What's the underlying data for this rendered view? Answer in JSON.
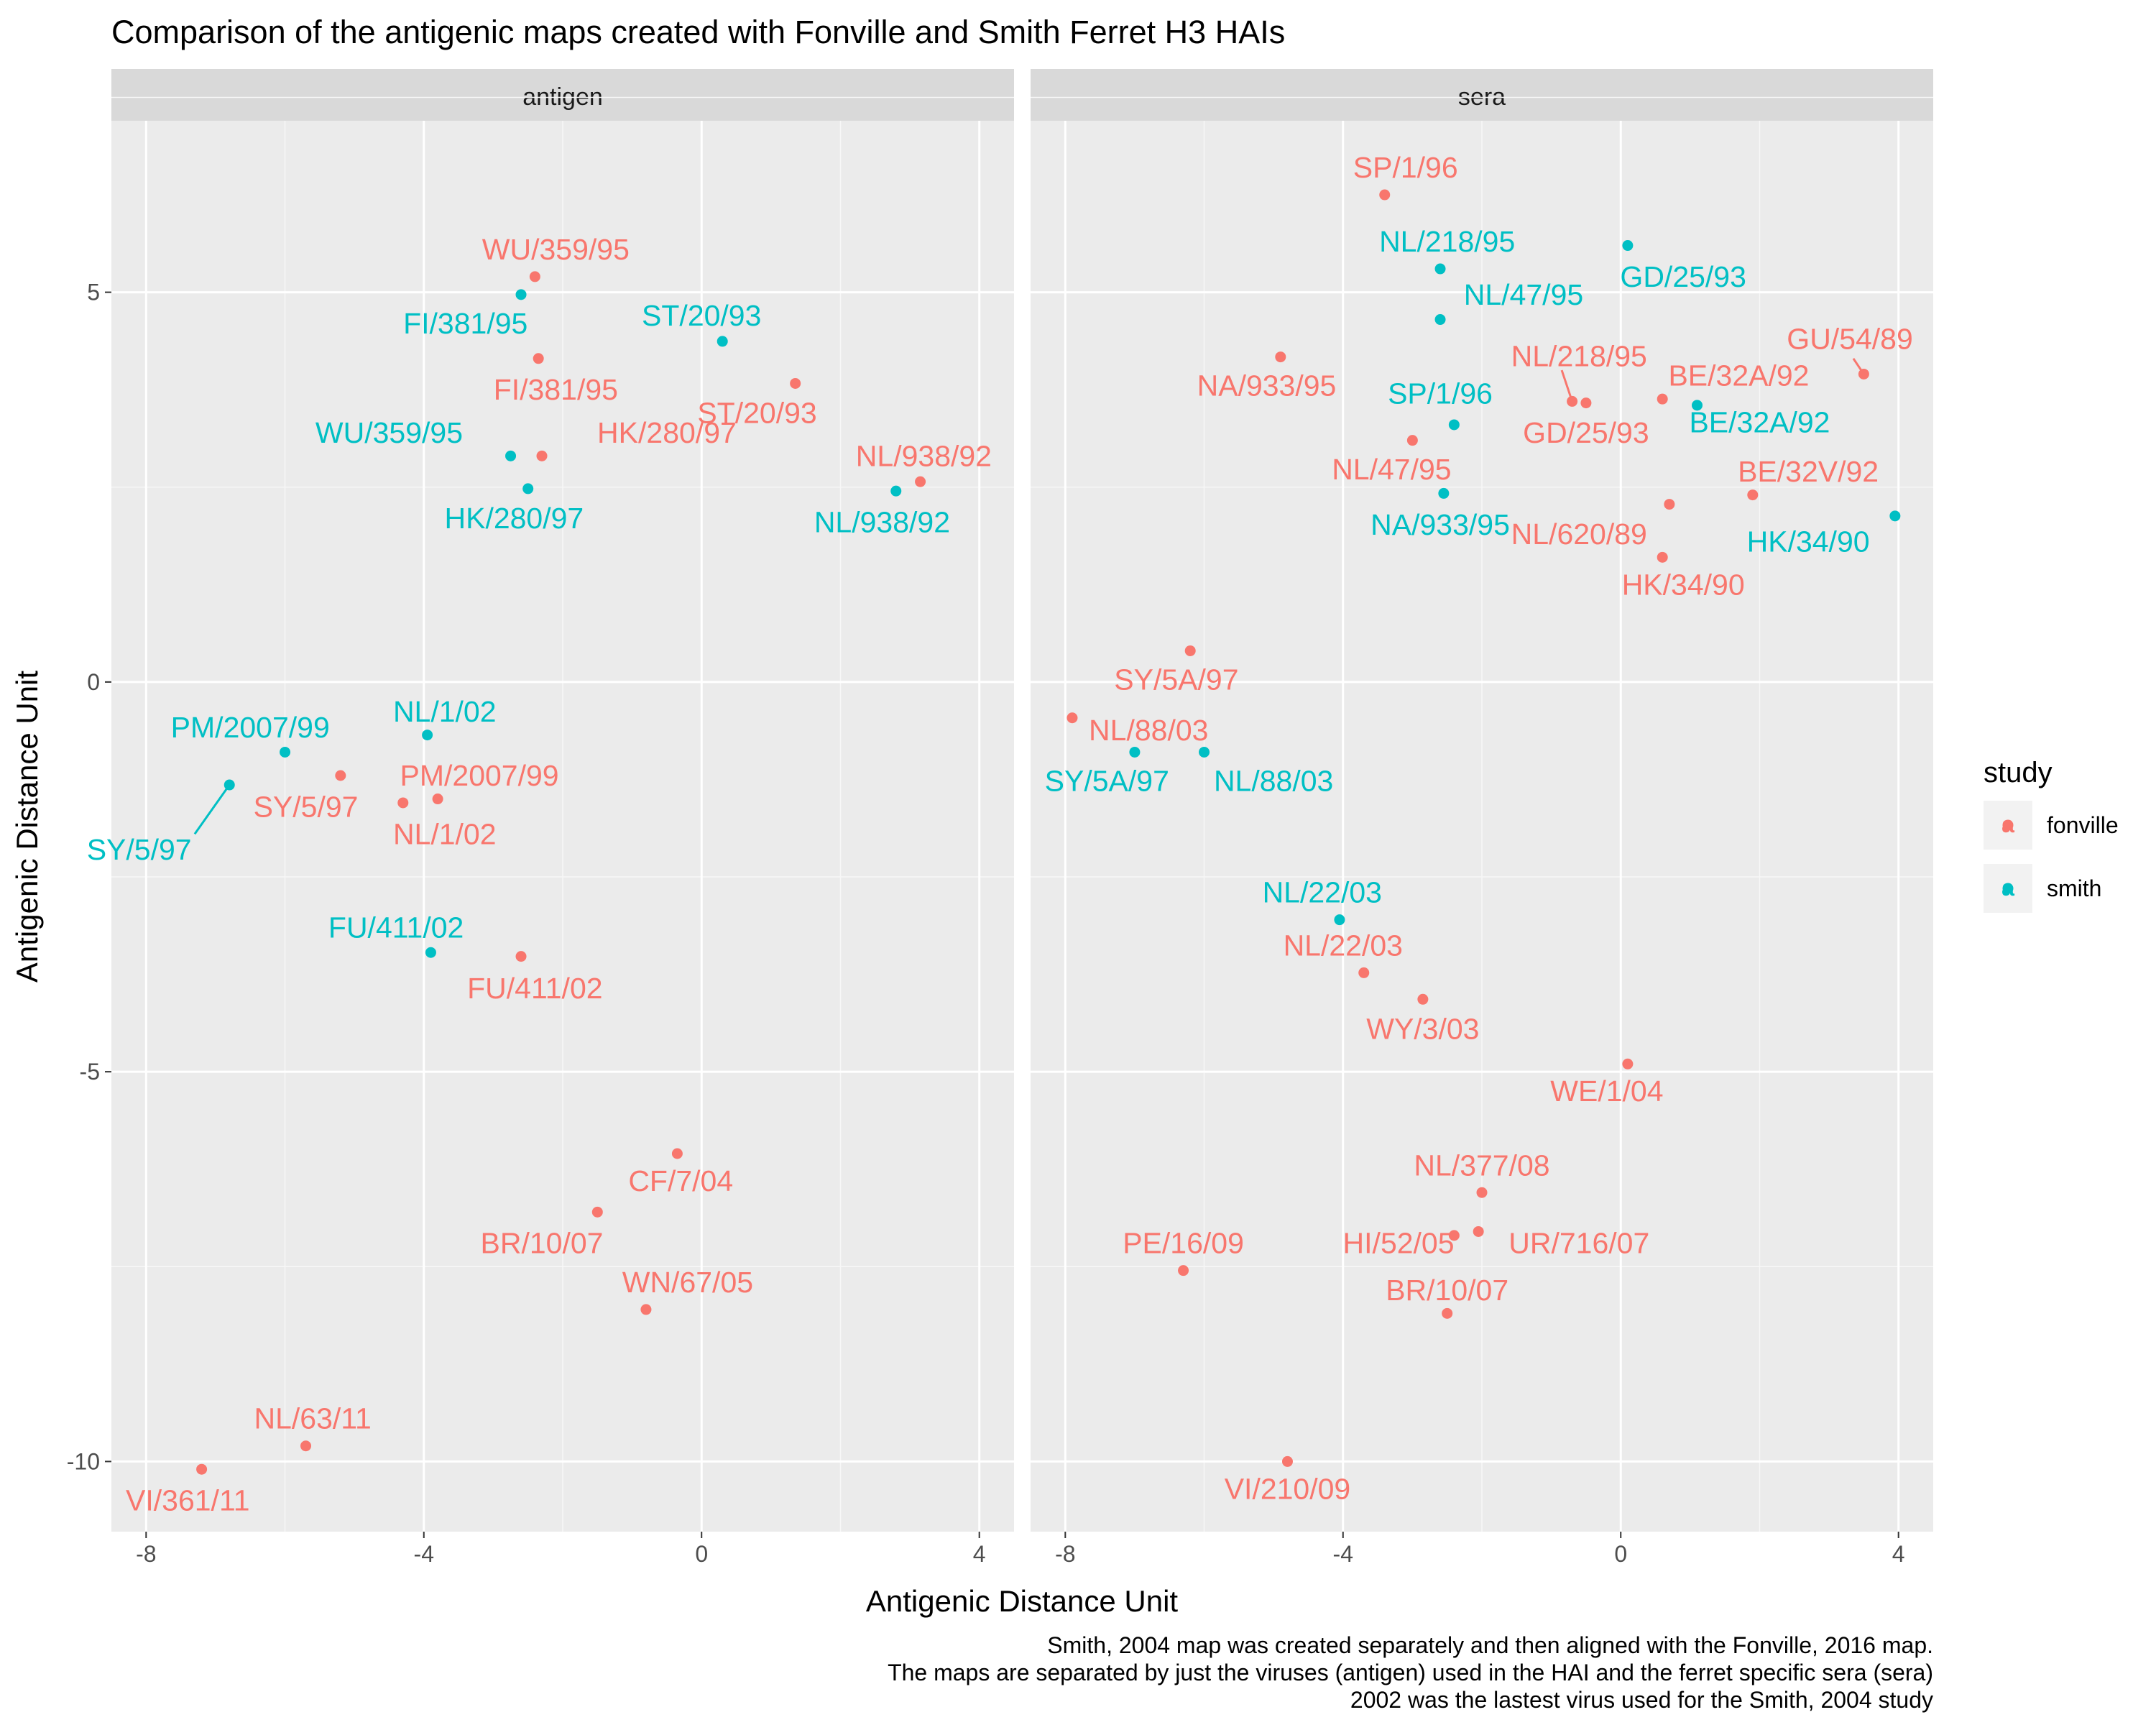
{
  "chart_data": {
    "type": "scatter",
    "title": "Comparison of the antigenic maps created with Fonville and Smith Ferret H3 HAIs",
    "xlabel": "Antigenic Distance Unit",
    "ylabel": "Antigenic Distance Unit",
    "x_ticks": [
      -8,
      -4,
      0,
      4
    ],
    "y_ticks": [
      5,
      0,
      -5,
      -10
    ],
    "xlim": [
      -8.5,
      4.5
    ],
    "ylim": [
      -10.9,
      7.2
    ],
    "grid": true,
    "legend": {
      "title": "study",
      "placement": "right",
      "glyph": "a",
      "entries": [
        {
          "key": "fonville",
          "label": "fonville",
          "color": "#F8766D"
        },
        {
          "key": "smith",
          "label": "smith",
          "color": "#00BFC4"
        }
      ]
    },
    "caption": [
      "Smith, 2004 map was created separately and then aligned with the Fonville, 2016 map.",
      "The maps are separated by just the viruses (antigen) used in the HAI and the ferret specific sera (sera)",
      "2002 was the lastest virus used for the Smith, 2004 study"
    ],
    "panels": [
      {
        "strip": "antigen",
        "points": [
          {
            "label": "WU/359/95",
            "x": -2.4,
            "y": 5.2,
            "study": "fonville",
            "lx": -2.1,
            "ly": 5.55
          },
          {
            "label": "FI/381/95",
            "x": -2.6,
            "y": 4.97,
            "study": "smith",
            "lx": -3.4,
            "ly": 4.6
          },
          {
            "label": "ST/20/93",
            "x": 0.3,
            "y": 4.37,
            "study": "smith",
            "lx": 0.0,
            "ly": 4.7
          },
          {
            "label": "FI/381/95",
            "x": -2.35,
            "y": 4.15,
            "study": "fonville",
            "lx": -2.1,
            "ly": 3.75
          },
          {
            "label": "ST/20/93",
            "x": 1.35,
            "y": 3.83,
            "study": "fonville",
            "lx": 0.8,
            "ly": 3.45
          },
          {
            "label": "WU/359/95",
            "x": -2.75,
            "y": 2.9,
            "study": "smith",
            "lx": -4.5,
            "ly": 3.2
          },
          {
            "label": "HK/280/97",
            "x": -2.3,
            "y": 2.9,
            "study": "fonville",
            "lx": -0.5,
            "ly": 3.2
          },
          {
            "label": "NL/938/92",
            "x": 3.15,
            "y": 2.57,
            "study": "fonville",
            "lx": 3.2,
            "ly": 2.9
          },
          {
            "label": "HK/280/97",
            "x": -2.5,
            "y": 2.48,
            "study": "smith",
            "lx": -2.7,
            "ly": 2.1
          },
          {
            "label": "NL/938/92",
            "x": 2.8,
            "y": 2.45,
            "study": "smith",
            "lx": 2.6,
            "ly": 2.05
          },
          {
            "label": "NL/1/02",
            "x": -3.95,
            "y": -0.68,
            "study": "smith",
            "lx": -3.7,
            "ly": -0.38
          },
          {
            "label": "PM/2007/99",
            "x": -6.0,
            "y": -0.9,
            "study": "smith",
            "lx": -6.5,
            "ly": -0.58
          },
          {
            "label": "SY/5/97",
            "x": -5.2,
            "y": -1.2,
            "study": "fonville",
            "lx": -5.7,
            "ly": -1.6
          },
          {
            "label": "PM/2007/99",
            "x": -3.8,
            "y": -1.5,
            "study": "fonville",
            "lx": -3.2,
            "ly": -1.2
          },
          {
            "label": "NL/1/02",
            "x": -4.3,
            "y": -1.55,
            "study": "fonville",
            "lx": -3.7,
            "ly": -1.95
          },
          {
            "label": "SY/5/97",
            "x": -6.8,
            "y": -1.32,
            "study": "smith",
            "lx": -8.1,
            "ly": -2.15,
            "seg": [
              -7.3,
              -1.95
            ]
          },
          {
            "label": "FU/411/02",
            "x": -3.9,
            "y": -3.47,
            "study": "smith",
            "lx": -4.4,
            "ly": -3.15
          },
          {
            "label": "FU/411/02",
            "x": -2.6,
            "y": -3.52,
            "study": "fonville",
            "lx": -2.4,
            "ly": -3.93
          },
          {
            "label": "CF/7/04",
            "x": -0.35,
            "y": -6.05,
            "study": "fonville",
            "lx": -0.3,
            "ly": -6.4
          },
          {
            "label": "BR/10/07",
            "x": -1.5,
            "y": -6.8,
            "study": "fonville",
            "lx": -2.3,
            "ly": -7.2
          },
          {
            "label": "WN/67/05",
            "x": -0.8,
            "y": -8.05,
            "study": "fonville",
            "lx": -0.2,
            "ly": -7.7
          },
          {
            "label": "NL/63/11",
            "x": -5.7,
            "y": -9.8,
            "study": "fonville",
            "lx": -5.6,
            "ly": -9.45
          },
          {
            "label": "VI/361/11",
            "x": -7.2,
            "y": -10.1,
            "study": "fonville",
            "lx": -7.4,
            "ly": -10.5
          }
        ]
      },
      {
        "strip": "sera",
        "points": [
          {
            "label": "SP/1/96",
            "x": -3.4,
            "y": 6.25,
            "study": "fonville",
            "lx": -3.1,
            "ly": 6.6
          },
          {
            "label": "GD/25/93",
            "x": 0.1,
            "y": 5.6,
            "study": "smith",
            "lx": 0.9,
            "ly": 5.2
          },
          {
            "label": "NL/218/95",
            "x": -2.6,
            "y": 5.3,
            "study": "smith",
            "lx": -2.5,
            "ly": 5.65
          },
          {
            "label": "NL/47/95",
            "x": -2.6,
            "y": 4.65,
            "study": "smith",
            "lx": -1.4,
            "ly": 4.97
          },
          {
            "label": "NA/933/95",
            "x": -4.9,
            "y": 4.17,
            "study": "fonville",
            "lx": -5.1,
            "ly": 3.8
          },
          {
            "label": "GU/54/89",
            "x": 3.5,
            "y": 3.95,
            "study": "fonville",
            "lx": 3.3,
            "ly": 4.4,
            "seg": [
              3.35,
              4.15
            ]
          },
          {
            "label": "NL/218/95",
            "x": -0.7,
            "y": 3.6,
            "study": "fonville",
            "lx": -0.6,
            "ly": 4.18,
            "seg": [
              -0.85,
              4.0
            ]
          },
          {
            "label": "GD/25/93",
            "x": -0.5,
            "y": 3.58,
            "study": "fonville",
            "lx": -0.5,
            "ly": 3.2
          },
          {
            "label": "BE/32A/92",
            "x": 0.6,
            "y": 3.63,
            "study": "fonville",
            "lx": 1.7,
            "ly": 3.93
          },
          {
            "label": "BE/32A/92",
            "x": 1.1,
            "y": 3.55,
            "study": "smith",
            "lx": 2.0,
            "ly": 3.33
          },
          {
            "label": "SP/1/96",
            "x": -2.4,
            "y": 3.3,
            "study": "smith",
            "lx": -2.6,
            "ly": 3.7
          },
          {
            "label": "NL/47/95",
            "x": -3.0,
            "y": 3.1,
            "study": "fonville",
            "lx": -3.3,
            "ly": 2.73
          },
          {
            "label": "BE/32V/92",
            "x": 1.9,
            "y": 2.4,
            "study": "fonville",
            "lx": 2.7,
            "ly": 2.7
          },
          {
            "label": "NA/933/95",
            "x": -2.55,
            "y": 2.42,
            "study": "smith",
            "lx": -2.6,
            "ly": 2.02
          },
          {
            "label": "NL/620/89",
            "x": 0.7,
            "y": 2.28,
            "study": "fonville",
            "lx": -0.6,
            "ly": 1.9
          },
          {
            "label": "HK/34/90",
            "x": 3.95,
            "y": 2.13,
            "study": "smith",
            "lx": 2.7,
            "ly": 1.8
          },
          {
            "label": "HK/34/90",
            "x": 0.6,
            "y": 1.6,
            "study": "fonville",
            "lx": 0.9,
            "ly": 1.25
          },
          {
            "label": "SY/5A/97",
            "x": -6.2,
            "y": 0.4,
            "study": "fonville",
            "lx": -6.4,
            "ly": 0.03
          },
          {
            "label": "NL/88/03",
            "x": -7.9,
            "y": -0.46,
            "study": "fonville",
            "lx": -6.8,
            "ly": -0.62
          },
          {
            "label": "SY/5A/97",
            "x": -7.0,
            "y": -0.9,
            "study": "smith",
            "lx": -7.4,
            "ly": -1.27
          },
          {
            "label": "NL/88/03",
            "x": -6.0,
            "y": -0.9,
            "study": "smith",
            "lx": -5.0,
            "ly": -1.27
          },
          {
            "label": "NL/22/03",
            "x": -4.05,
            "y": -3.05,
            "study": "smith",
            "lx": -4.3,
            "ly": -2.7
          },
          {
            "label": "NL/22/03",
            "x": -3.7,
            "y": -3.73,
            "study": "fonville",
            "lx": -4.0,
            "ly": -3.38
          },
          {
            "label": "WY/3/03",
            "x": -2.85,
            "y": -4.07,
            "study": "fonville",
            "lx": -2.85,
            "ly": -4.45
          },
          {
            "label": "WE/1/04",
            "x": 0.1,
            "y": -4.9,
            "study": "fonville",
            "lx": -0.2,
            "ly": -5.25
          },
          {
            "label": "NL/377/08",
            "x": -2.0,
            "y": -6.55,
            "study": "fonville",
            "lx": -2.0,
            "ly": -6.2
          },
          {
            "label": "HI/52/05",
            "x": -2.4,
            "y": -7.1,
            "study": "fonville",
            "lx": -3.2,
            "ly": -7.2
          },
          {
            "label": "UR/716/07",
            "x": -2.05,
            "y": -7.05,
            "study": "fonville",
            "lx": -0.6,
            "ly": -7.2
          },
          {
            "label": "PE/16/09",
            "x": -6.3,
            "y": -7.55,
            "study": "fonville",
            "lx": -6.3,
            "ly": -7.2
          },
          {
            "label": "BR/10/07",
            "x": -2.5,
            "y": -8.1,
            "study": "fonville",
            "lx": -2.5,
            "ly": -7.8
          },
          {
            "label": "VI/210/09",
            "x": -4.8,
            "y": -10.0,
            "study": "fonville",
            "lx": -4.8,
            "ly": -10.35
          }
        ]
      }
    ]
  }
}
